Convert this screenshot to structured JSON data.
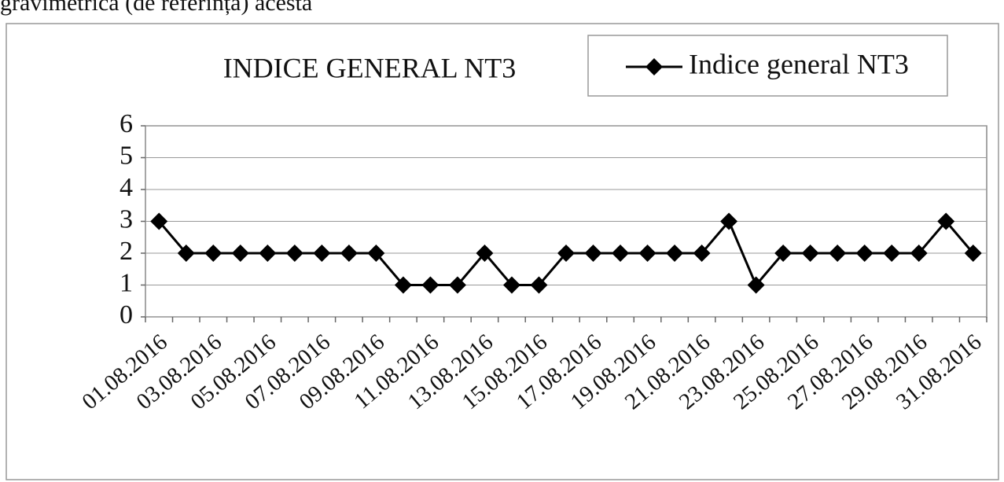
{
  "caption_fragment": "gravimetrica (de referința) acesta",
  "chart_data": {
    "type": "line",
    "title": "INDICE GENERAL NT3",
    "categories": [
      "01.08.2016",
      null,
      "03.08.2016",
      null,
      "05.08.2016",
      null,
      "07.08.2016",
      null,
      "09.08.2016",
      null,
      "11.08.2016",
      null,
      "13.08.2016",
      null,
      "15.08.2016",
      null,
      "17.08.2016",
      null,
      "19.08.2016",
      null,
      "21.08.2016",
      null,
      "23.08.2016",
      null,
      "25.08.2016",
      null,
      "27.08.2016",
      null,
      "29.08.2016",
      null,
      "31.08.2016"
    ],
    "series": [
      {
        "name": "Indice general NT3",
        "color": "#000000",
        "values": [
          3,
          2,
          2,
          2,
          2,
          2,
          2,
          2,
          2,
          1,
          1,
          1,
          2,
          1,
          1,
          2,
          2,
          2,
          2,
          2,
          2,
          3,
          1,
          2,
          2,
          2,
          2,
          2,
          2,
          3,
          2
        ]
      }
    ],
    "ylim": [
      0,
      6
    ],
    "yticks": [
      0,
      1,
      2,
      3,
      4,
      5,
      6
    ],
    "grid": true,
    "legend": "top-right"
  }
}
